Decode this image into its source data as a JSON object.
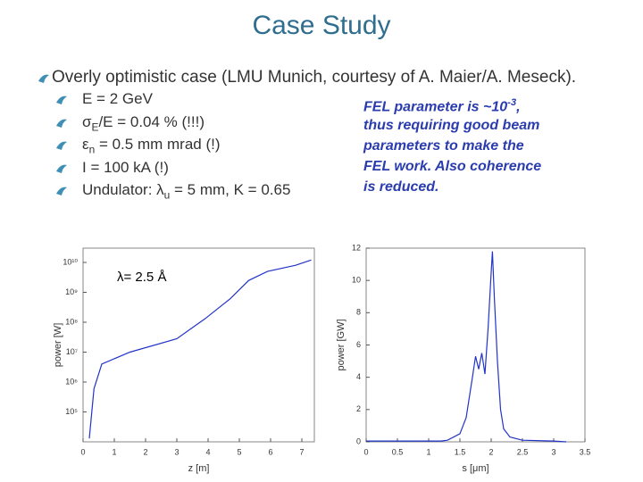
{
  "title": "Case Study",
  "bullet": "Overly optimistic case (LMU Munich, courtesy of A. Maier/A. Meseck).",
  "sub_bullets": [
    [
      {
        "text": "E = 2 GeV"
      }
    ],
    [
      {
        "text": "σ"
      },
      {
        "sub": "E"
      },
      {
        "text": "/E = 0.04 % (!!!)"
      }
    ],
    [
      {
        "text": "ε"
      },
      {
        "sub": "n"
      },
      {
        "text": " = 0.5 mm mrad (!)"
      }
    ],
    [
      {
        "text": "I = 100 kA (!)"
      }
    ],
    [
      {
        "text": "Undulator: λ"
      },
      {
        "sub": "u"
      },
      {
        "text": " = 5 mm, K = 0.65"
      }
    ]
  ],
  "note": [
    [
      {
        "text": "FEL parameter is ~10"
      },
      {
        "sup": "-3"
      },
      {
        "text": ","
      }
    ],
    [
      {
        "text": "thus requiring good beam"
      }
    ],
    [
      {
        "text": "parameters to make the"
      }
    ],
    [
      {
        "text": "FEL work. Also coherence"
      }
    ],
    [
      {
        "text": "is reduced."
      }
    ]
  ],
  "chart_data": [
    {
      "type": "line",
      "x_label": "z [m]",
      "y_label": "power [W]",
      "annotation": "λ= 2.5 Å",
      "log_y": true,
      "x": [
        0.2,
        0.35,
        0.6,
        1.5,
        3,
        3.9,
        4.7,
        5.3,
        5.9,
        6.8,
        7.3
      ],
      "series": [
        {
          "color": "#2233c8",
          "values": [
            13000,
            600000,
            4000000,
            10000000,
            28000000,
            130000000,
            600000000,
            2500000000,
            5000000000,
            8000000000,
            12000000000
          ]
        }
      ],
      "xlim": [
        0,
        7.4
      ],
      "xticks": [
        0,
        1,
        2,
        3,
        4,
        5,
        6,
        7
      ],
      "ylim": [
        10000,
        30000000000
      ],
      "yticks": [
        {
          "value": 100000,
          "label": "10⁵"
        },
        {
          "value": 1000000,
          "label": "10⁶"
        },
        {
          "value": 10000000,
          "label": "10⁷"
        },
        {
          "value": 100000000,
          "label": "10⁸"
        },
        {
          "value": 1000000000,
          "label": "10⁹"
        },
        {
          "value": 10000000000,
          "label": "10¹⁰"
        }
      ]
    },
    {
      "type": "line",
      "x_label": "s [μm]",
      "y_label": "power [GW]",
      "log_y": false,
      "x": [
        0,
        0.5,
        1,
        1.2,
        1.3,
        1.5,
        1.6,
        1.7,
        1.75,
        1.8,
        1.85,
        1.9,
        1.95,
        2,
        2.02,
        2.05,
        2.1,
        2.15,
        2.2,
        2.3,
        2.5,
        3,
        3.2
      ],
      "series": [
        {
          "color": "#2233c8",
          "values": [
            0.05,
            0.05,
            0.05,
            0.05,
            0.1,
            0.5,
            1.5,
            4,
            5.3,
            4.5,
            5.5,
            4.2,
            7,
            10.5,
            11.8,
            9,
            5,
            2,
            0.8,
            0.3,
            0.1,
            0.05,
            0
          ]
        }
      ],
      "xlim": [
        0,
        3.5
      ],
      "xticks": [
        0,
        0.5,
        1,
        1.5,
        2,
        2.5,
        3,
        3.5
      ],
      "ylim": [
        0,
        12
      ],
      "yticks": [
        0,
        2,
        4,
        6,
        8,
        10,
        12
      ]
    }
  ]
}
